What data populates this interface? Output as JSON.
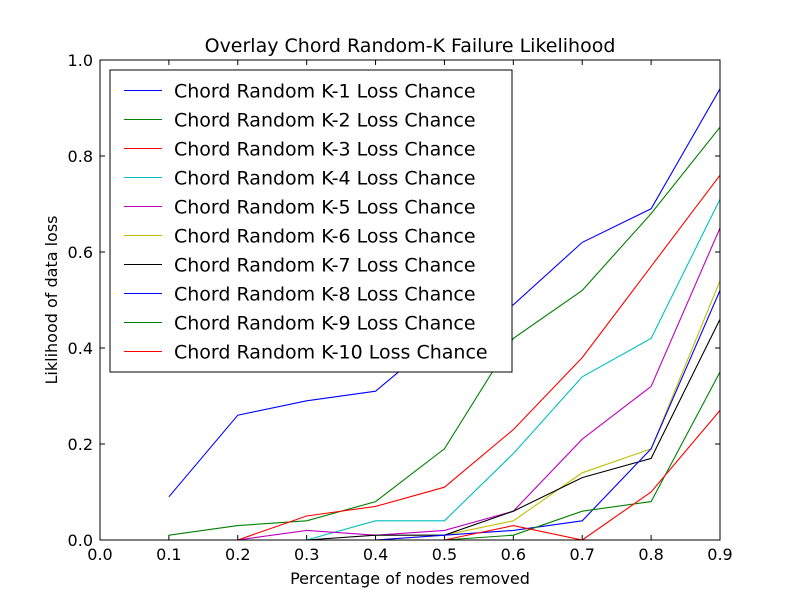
{
  "chart_data": {
    "type": "line",
    "title": "Overlay Chord Random-K Failure Likelihood",
    "xlabel": "Percentage of nodes removed",
    "ylabel": "Liklihood of data loss",
    "xlim": [
      0.0,
      0.9
    ],
    "ylim": [
      0.0,
      1.0
    ],
    "xticks": [
      "0.0",
      "0.1",
      "0.2",
      "0.3",
      "0.4",
      "0.5",
      "0.6",
      "0.7",
      "0.8",
      "0.9"
    ],
    "yticks": [
      "0.0",
      "0.2",
      "0.4",
      "0.6",
      "0.8",
      "1.0"
    ],
    "grid": false,
    "legend_position": "top-left",
    "x": [
      0.1,
      0.2,
      0.3,
      0.4,
      0.5,
      0.6,
      0.7,
      0.8,
      0.9
    ],
    "series": [
      {
        "name": "Chord Random K-1 Loss Chance",
        "color": "#0000ff",
        "values": [
          0.09,
          0.26,
          0.29,
          0.31,
          0.43,
          0.49,
          0.62,
          0.69,
          0.94
        ]
      },
      {
        "name": "Chord Random K-2 Loss Chance",
        "color": "#008000",
        "values": [
          0.01,
          0.03,
          0.04,
          0.08,
          0.19,
          0.42,
          0.52,
          0.68,
          0.86
        ]
      },
      {
        "name": "Chord Random K-3 Loss Chance",
        "color": "#ff0000",
        "values": [
          0.0,
          0.0,
          0.05,
          0.07,
          0.11,
          0.23,
          0.38,
          0.57,
          0.76
        ]
      },
      {
        "name": "Chord Random K-4 Loss Chance",
        "color": "#00bfbf",
        "values": [
          0.0,
          0.0,
          0.0,
          0.04,
          0.04,
          0.18,
          0.34,
          0.42,
          0.71
        ]
      },
      {
        "name": "Chord Random K-5 Loss Chance",
        "color": "#bf00bf",
        "values": [
          0.0,
          0.0,
          0.02,
          0.01,
          0.02,
          0.06,
          0.21,
          0.32,
          0.65
        ]
      },
      {
        "name": "Chord Random K-6 Loss Chance",
        "color": "#bfbf00",
        "values": [
          0.0,
          0.0,
          0.0,
          0.0,
          0.01,
          0.04,
          0.14,
          0.19,
          0.54
        ]
      },
      {
        "name": "Chord Random K-7 Loss Chance",
        "color": "#000000",
        "values": [
          0.0,
          0.0,
          0.0,
          0.01,
          0.01,
          0.06,
          0.13,
          0.17,
          0.46
        ]
      },
      {
        "name": "Chord Random K-8 Loss Chance",
        "color": "#0000ff",
        "values": [
          0.0,
          0.0,
          0.0,
          0.0,
          0.01,
          0.02,
          0.04,
          0.19,
          0.52
        ]
      },
      {
        "name": "Chord Random K-9 Loss Chance",
        "color": "#008000",
        "values": [
          0.0,
          0.0,
          0.0,
          0.0,
          0.0,
          0.01,
          0.06,
          0.08,
          0.35
        ]
      },
      {
        "name": "Chord Random K-10 Loss Chance",
        "color": "#ff0000",
        "values": [
          0.0,
          0.0,
          0.0,
          0.0,
          0.0,
          0.03,
          0.0,
          0.1,
          0.27
        ]
      }
    ]
  }
}
